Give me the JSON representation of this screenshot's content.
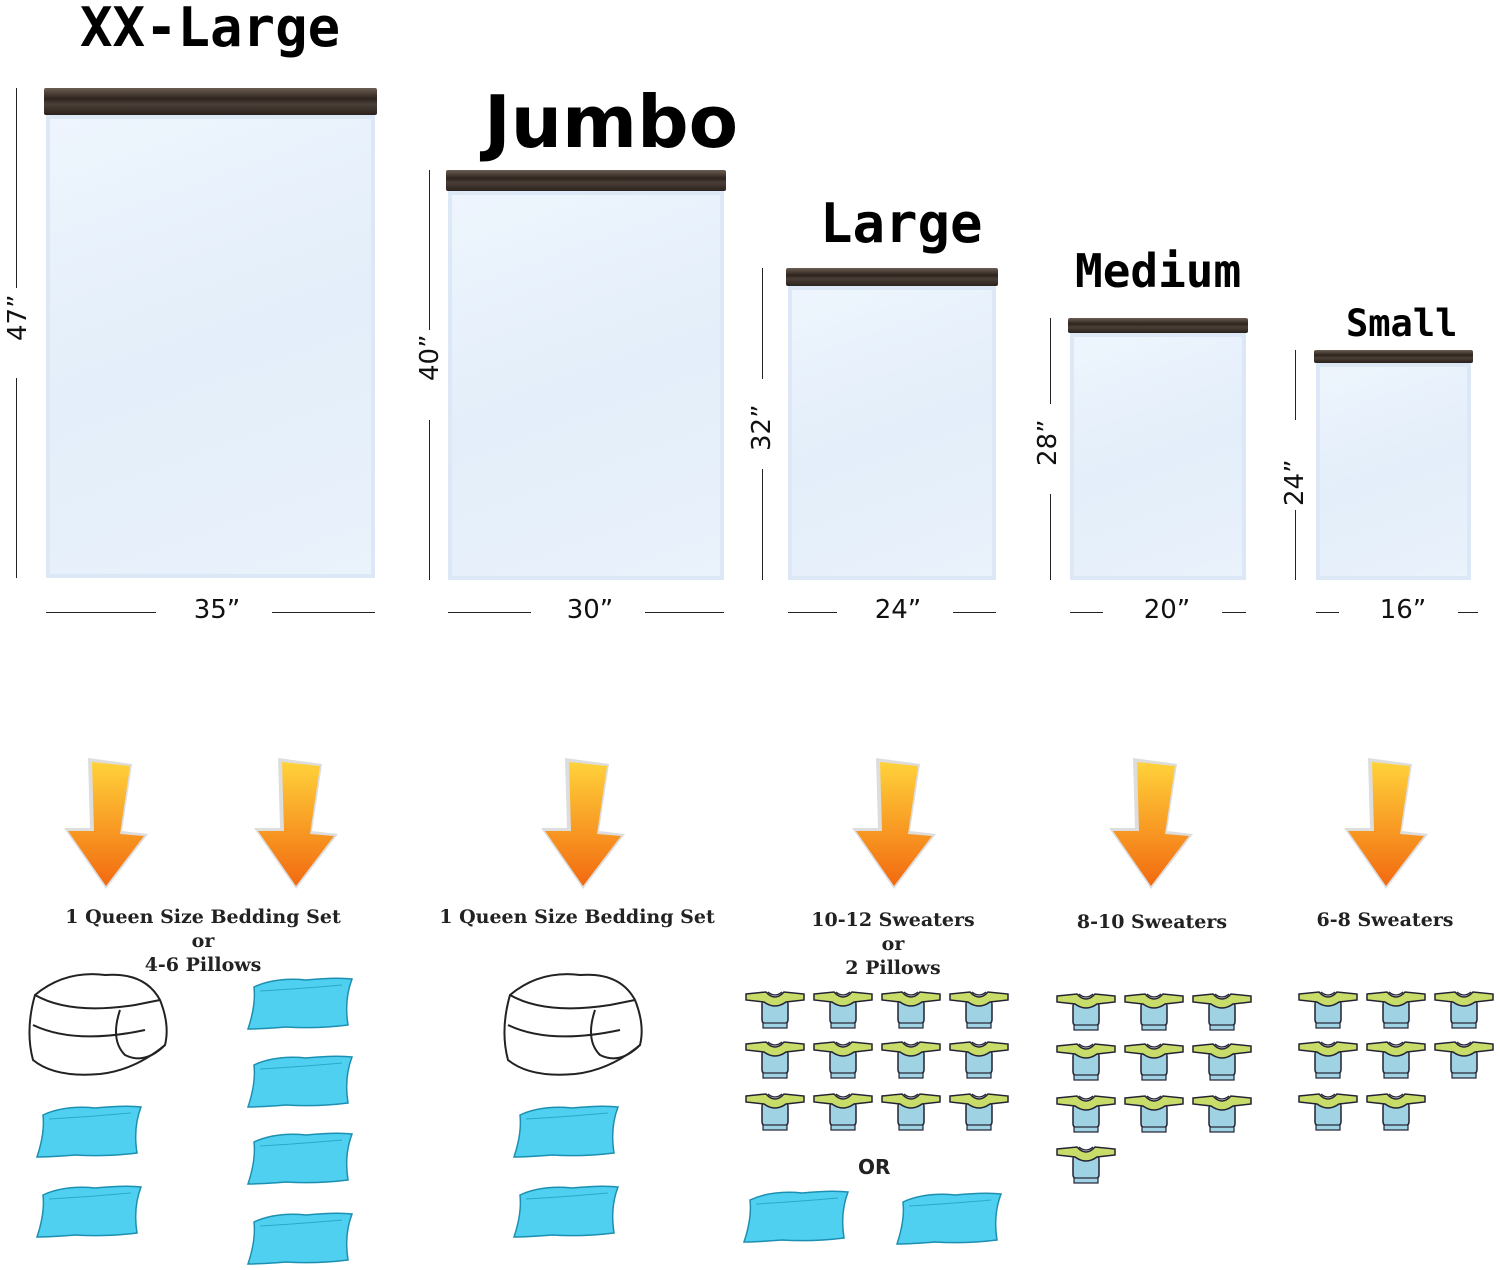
{
  "sizes": [
    {
      "name": "XX-Large",
      "width": "35”",
      "height": "47”"
    },
    {
      "name": "Jumbo",
      "width": "30”",
      "height": "40”"
    },
    {
      "name": "Large",
      "width": "24”",
      "height": "32”"
    },
    {
      "name": "Medium",
      "width": "20”",
      "height": "28”"
    },
    {
      "name": "Small",
      "width": "16”",
      "height": "24”"
    }
  ],
  "capacities": [
    {
      "lines": [
        "1 Queen Size Bedding Set",
        "or",
        "4-6 Pillows"
      ],
      "comforters": 1,
      "pillows": 6
    },
    {
      "lines": [
        "1 Queen Size Bedding Set"
      ],
      "comforters": 1,
      "pillows": 2
    },
    {
      "lines": [
        "10-12 Sweaters",
        "or",
        "2 Pillows"
      ],
      "sweaters": 12,
      "pillows": 2,
      "separator": "OR"
    },
    {
      "lines": [
        "8-10 Sweaters"
      ],
      "sweaters": 10
    },
    {
      "lines": [
        "6-8 Sweaters"
      ],
      "sweaters": 8
    }
  ],
  "icons": {
    "arrow": "down-arrow-icon",
    "pillow": "pillow-icon",
    "sweater": "sweater-icon",
    "comforter": "comforter-icon"
  },
  "colors": {
    "arrow": "#f57f17",
    "pillow": "#4fd0f0",
    "sweater_body": "#9fd3e3",
    "sweater_sleeve": "#c8dc6a",
    "zipper": "#3a2f28",
    "bag": "#e6f0fb"
  }
}
